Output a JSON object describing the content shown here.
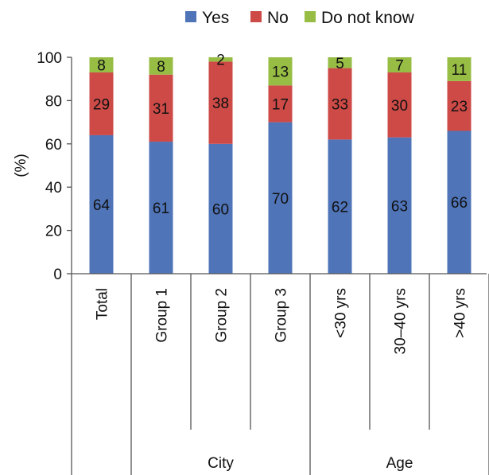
{
  "chart_data": {
    "type": "bar",
    "stacked": true,
    "categories": [
      "Total",
      "Group 1",
      "Group 2",
      "Group 3",
      "<30 yrs",
      "30–40 yrs",
      ">40 yrs"
    ],
    "series": [
      {
        "name": "Yes",
        "color": "#4f74b8",
        "values": [
          64,
          61,
          60,
          70,
          62,
          63,
          66
        ]
      },
      {
        "name": "No",
        "color": "#cd4a47",
        "values": [
          29,
          31,
          38,
          17,
          33,
          30,
          23
        ]
      },
      {
        "name": "Do not know",
        "color": "#97bd45",
        "values": [
          8,
          8,
          2,
          13,
          5,
          7,
          11
        ]
      }
    ],
    "ylabel": "(%)",
    "ylim": [
      0,
      100
    ],
    "yticks": [
      0,
      20,
      40,
      60,
      80,
      100
    ],
    "groups": [
      {
        "label": "City",
        "categories": [
          "Group 1",
          "Group 2",
          "Group 3"
        ]
      },
      {
        "label": "Age",
        "categories": [
          "<30 yrs",
          "30–40 yrs",
          ">40 yrs"
        ]
      }
    ],
    "legend_position": "top",
    "grid": false
  }
}
